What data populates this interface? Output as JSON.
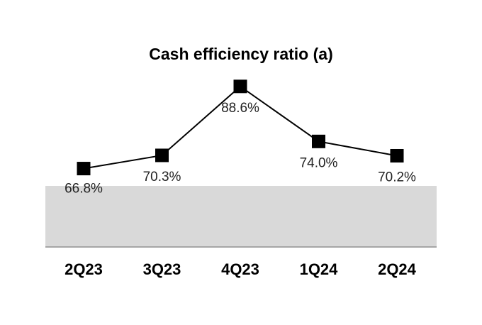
{
  "chart_data": {
    "type": "line",
    "title": "Cash efficiency ratio (a)",
    "categories": [
      "2Q23",
      "3Q23",
      "4Q23",
      "1Q24",
      "2Q24"
    ],
    "series": [
      {
        "values": [
          66.8,
          70.3,
          88.6,
          74.0,
          70.2
        ],
        "labels": [
          "66.8%",
          "70.3%",
          "88.6%",
          "74.0%",
          "70.2%"
        ]
      }
    ],
    "ylim": [
      46,
      104
    ],
    "grid": false,
    "legend": "none",
    "colors": {
      "line": "#000000",
      "marker": "#000000",
      "band": "#d9d9d9",
      "baseline": "#a6a6a6"
    }
  }
}
